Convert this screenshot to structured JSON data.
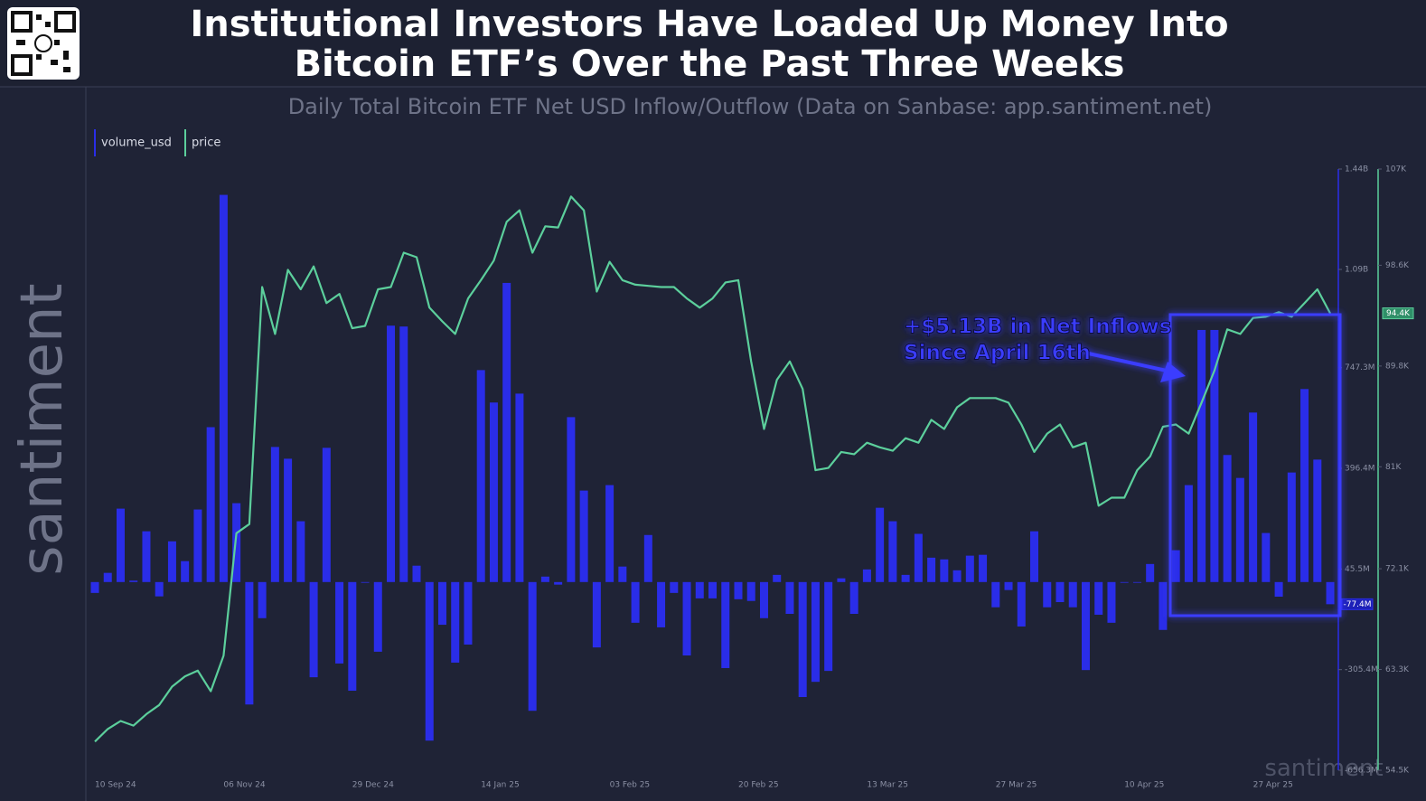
{
  "chart_data": {
    "type": "bar-line",
    "title_lines": [
      "Institutional Investors Have Loaded Up Money Into",
      "Bitcoin ETF’s Over the Past Three Weeks"
    ],
    "subtitle": "Daily Total Bitcoin ETF Net USD Inflow/Outflow (Data on Sanbase: app.santiment.net)",
    "annotation_lines": [
      "+$5.13B in Net Inflows",
      "Since April 16th"
    ],
    "watermark": "santiment",
    "categories": [
      "10 Sep 24",
      null,
      null,
      null,
      null,
      null,
      null,
      null,
      null,
      null,
      "06 Nov 24",
      null,
      null,
      null,
      null,
      null,
      null,
      null,
      null,
      null,
      "29 Dec 24",
      null,
      null,
      null,
      null,
      null,
      null,
      null,
      null,
      null,
      "14 Jan 25",
      null,
      null,
      null,
      null,
      null,
      null,
      null,
      null,
      null,
      "03 Feb 25",
      null,
      null,
      null,
      null,
      null,
      null,
      null,
      null,
      null,
      "20 Feb 25",
      null,
      null,
      null,
      null,
      null,
      null,
      null,
      null,
      null,
      "13 Mar 25",
      null,
      null,
      null,
      null,
      null,
      null,
      null,
      null,
      null,
      "27 Mar 25",
      null,
      null,
      null,
      null,
      null,
      null,
      null,
      null,
      null,
      "10 Apr 25",
      null,
      null,
      null,
      null,
      null,
      null,
      null,
      null,
      null,
      "27 Apr 25",
      null,
      null,
      null,
      null,
      null,
      null
    ],
    "series": [
      {
        "name": "volume_usd",
        "type": "bar",
        "axis": "y",
        "color": "#2a2de8",
        "values": [
          -38000000,
          32000000,
          256000000,
          5000000,
          177000000,
          -50000000,
          142000000,
          73000000,
          253000000,
          540000000,
          1350000000,
          275000000,
          -427000000,
          -126000000,
          471000000,
          430000000,
          212000000,
          -332000000,
          468000000,
          -284000000,
          -379000000,
          0,
          -243000000,
          894000000,
          891000000,
          57000000,
          -553000000,
          -149000000,
          -281000000,
          -218000000,
          739000000,
          626000000,
          1043000000,
          657000000,
          -449000000,
          19000000,
          -9000000,
          575000000,
          319000000,
          -228000000,
          338000000,
          54000000,
          -142000000,
          164000000,
          -158000000,
          -38000000,
          -256000000,
          -57000000,
          -57000000,
          -300000000,
          -60000000,
          -66000000,
          -126000000,
          25000000,
          -111000000,
          -401000000,
          -348000000,
          -310000000,
          13000000,
          -111000000,
          44000000,
          259000000,
          212000000,
          25000000,
          168000000,
          85000000,
          79000000,
          41000000,
          92000000,
          95000000,
          -88000000,
          -28000000,
          -155000000,
          177000000,
          -88000000,
          -70000000,
          -88000000,
          -307000000,
          -114000000,
          -142000000,
          0,
          0,
          63000000,
          -167000000,
          111000000,
          338000000,
          879000000,
          879000000,
          443000000,
          363000000,
          591000000,
          171000000,
          -51000000,
          382000000,
          673000000,
          427000000,
          -77400000
        ],
        "value_labels": [
          null,
          null,
          null,
          null,
          null,
          null,
          null,
          null,
          null,
          null,
          null,
          null,
          null,
          null,
          null,
          null,
          null,
          null,
          null,
          null,
          null,
          null,
          null,
          null,
          null,
          null,
          null,
          null,
          null,
          null,
          null,
          null,
          null,
          null,
          null,
          null,
          null,
          null,
          null,
          null,
          null,
          null,
          null,
          null,
          null,
          null,
          null,
          null,
          null,
          null,
          null,
          null,
          null,
          null,
          null,
          null,
          null,
          null,
          null,
          null,
          null,
          null,
          null,
          null,
          null,
          null,
          null,
          null,
          null,
          null,
          null,
          null,
          null,
          null,
          null,
          null,
          null,
          null,
          null,
          null,
          null,
          null,
          null,
          null,
          null,
          null,
          null,
          null,
          null,
          null,
          null,
          null,
          null,
          null,
          null,
          null,
          "-77.4M"
        ]
      },
      {
        "name": "price",
        "type": "line",
        "axis": "y2",
        "color": "#5ccf9c",
        "values": [
          57000,
          58100,
          58800,
          58400,
          59400,
          60200,
          61800,
          62700,
          63200,
          61400,
          64500,
          75200,
          76000,
          96700,
          92600,
          98200,
          96500,
          98500,
          95300,
          96100,
          93100,
          93300,
          96500,
          96700,
          99700,
          99300,
          94900,
          93700,
          92600,
          95700,
          97300,
          99000,
          102400,
          103400,
          99700,
          102000,
          101900,
          104600,
          103400,
          96300,
          98900,
          97300,
          96900,
          96800,
          96700,
          96700,
          95700,
          94900,
          95700,
          97100,
          97300,
          90200,
          84300,
          88600,
          90200,
          87800,
          80700,
          80900,
          82300,
          82100,
          83100,
          82700,
          82400,
          83500,
          83100,
          85100,
          84300,
          86200,
          87000,
          87000,
          87000,
          86600,
          84700,
          82300,
          83900,
          84700,
          82700,
          83100,
          77600,
          78300,
          78300,
          80700,
          81900,
          84500,
          84700,
          83900,
          86600,
          89400,
          93000,
          92600,
          94000,
          94100,
          94500,
          94100,
          95300,
          96500,
          94400
        ],
        "value_labels": [
          null,
          null,
          null,
          null,
          null,
          null,
          null,
          null,
          null,
          null,
          null,
          null,
          null,
          null,
          null,
          null,
          null,
          null,
          null,
          null,
          null,
          null,
          null,
          null,
          null,
          null,
          null,
          null,
          null,
          null,
          null,
          null,
          null,
          null,
          null,
          null,
          null,
          null,
          null,
          null,
          null,
          null,
          null,
          null,
          null,
          null,
          null,
          null,
          null,
          null,
          null,
          null,
          null,
          null,
          null,
          null,
          null,
          null,
          null,
          null,
          null,
          null,
          null,
          null,
          null,
          null,
          null,
          null,
          null,
          null,
          null,
          null,
          null,
          null,
          null,
          null,
          null,
          null,
          null,
          null,
          null,
          null,
          null,
          null,
          null,
          null,
          null,
          null,
          null,
          null,
          null,
          null,
          null,
          null,
          null,
          null,
          "94.4K"
        ]
      }
    ],
    "ylim": [
      -656300000,
      1440000000
    ],
    "yticks": [
      {
        "value": 1440000000,
        "label": "1.44B"
      },
      {
        "value": 1090000000,
        "label": "1.09B"
      },
      {
        "value": 747300000,
        "label": "747.3M"
      },
      {
        "value": 396400000,
        "label": "396.4M"
      },
      {
        "value": 45500000,
        "label": "45.5M"
      },
      {
        "value": -305400000,
        "label": "-305.4M"
      },
      {
        "value": -656300000,
        "label": "-656.3M"
      }
    ],
    "y2lim": [
      54500,
      107000
    ],
    "y2ticks": [
      {
        "value": 107000,
        "label": "107K"
      },
      {
        "value": 98600,
        "label": "98.6K"
      },
      {
        "value": 89800,
        "label": "89.8K"
      },
      {
        "value": 81000,
        "label": "81K"
      },
      {
        "value": 72100,
        "label": "72.1K"
      },
      {
        "value": 63300,
        "label": "63.3K"
      },
      {
        "value": 54500,
        "label": "54.5K"
      }
    ],
    "grid": false,
    "legend": "top-left"
  }
}
